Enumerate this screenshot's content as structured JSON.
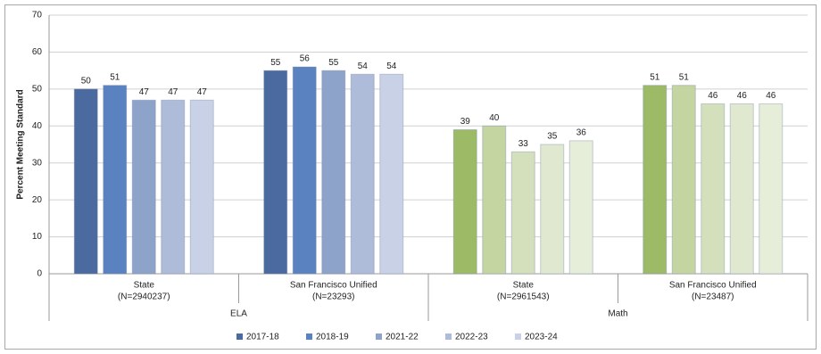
{
  "chart_data": {
    "type": "bar",
    "y_label": "Percent Meeting Standard",
    "categories": [
      "State",
      "San Francisco Unified",
      "State",
      "San Francisco Unified"
    ],
    "category_notes": [
      "(N=2940237)",
      "(N=23293)",
      "(N=2961543)",
      "(N=23487)"
    ],
    "group_labels": [
      "ELA",
      "Math"
    ],
    "series": [
      {
        "name": "2017-18",
        "group_colors": [
          "#4a6aa0",
          "#9dbb67"
        ],
        "values": [
          50,
          55,
          39,
          51
        ]
      },
      {
        "name": "2018-19",
        "group_colors": [
          "#5b82c0",
          "#c4d5a2"
        ],
        "values": [
          51,
          56,
          40,
          51
        ]
      },
      {
        "name": "2021-22",
        "group_colors": [
          "#8ea3c9",
          "#d3e0bb"
        ],
        "values": [
          47,
          55,
          33,
          46
        ]
      },
      {
        "name": "2022-23",
        "group_colors": [
          "#aebcd9",
          "#e0e9cf"
        ],
        "values": [
          47,
          54,
          35,
          46
        ]
      },
      {
        "name": "2023-24",
        "group_colors": [
          "#c8d1e6",
          "#e6eed9"
        ],
        "values": [
          47,
          54,
          36,
          46
        ]
      }
    ],
    "ylim": [
      0,
      70
    ],
    "yticks": [
      0,
      10,
      20,
      30,
      40,
      50,
      60,
      70
    ],
    "grid": true
  }
}
